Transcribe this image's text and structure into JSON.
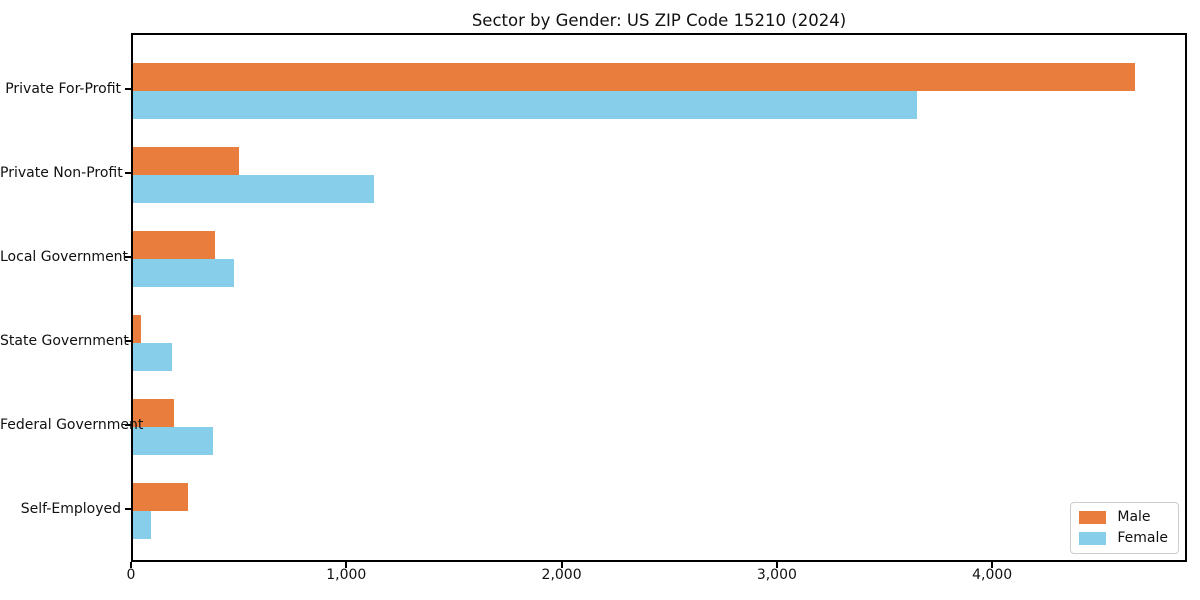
{
  "chart_data": {
    "type": "bar",
    "orientation": "horizontal",
    "title": "Sector by Gender: US ZIP Code 15210 (2024)",
    "categories": [
      "Private For-Profit",
      "Private Non-Profit",
      "Local Government",
      "State Government",
      "Federal Government",
      "Self-Employed"
    ],
    "series": [
      {
        "name": "Male",
        "color": "#e87d3e",
        "values": [
          4670,
          495,
          380,
          35,
          190,
          255
        ]
      },
      {
        "name": "Female",
        "color": "#87ceeb",
        "values": [
          3655,
          1125,
          470,
          180,
          375,
          85
        ]
      }
    ],
    "xlabel": "",
    "ylabel": "",
    "xlim": [
      0,
      4905
    ],
    "xticks": [
      {
        "value": 0,
        "label": "0"
      },
      {
        "value": 1000,
        "label": "1,000"
      },
      {
        "value": 2000,
        "label": "2,000"
      },
      {
        "value": 3000,
        "label": "3,000"
      },
      {
        "value": 4000,
        "label": "4,000"
      }
    ],
    "grid": false,
    "legend": {
      "position": "lower right",
      "entries": [
        "Male",
        "Female"
      ]
    },
    "colors": {
      "axis": "#000000",
      "text": "#111111",
      "legend_border": "#cccccc",
      "background": "#ffffff"
    }
  }
}
